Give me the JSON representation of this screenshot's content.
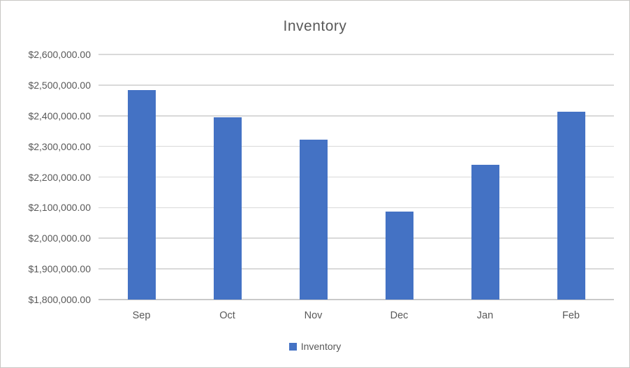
{
  "chart_data": {
    "type": "bar",
    "title": "Inventory",
    "categories": [
      "Sep",
      "Oct",
      "Nov",
      "Dec",
      "Jan",
      "Feb"
    ],
    "series": [
      {
        "name": "Inventory",
        "values": [
          2484000,
          2396000,
          2322000,
          2087000,
          2240000,
          2412000
        ]
      }
    ],
    "xlabel": "",
    "ylabel": "",
    "ylim": [
      1800000,
      2600000
    ],
    "y_tick_step": 100000,
    "y_tick_values": [
      1800000,
      1900000,
      2000000,
      2100000,
      2200000,
      2300000,
      2400000,
      2500000,
      2600000
    ],
    "y_tick_labels": [
      "$1,800,000.00",
      "$1,900,000.00",
      "$2,000,000.00",
      "$2,100,000.00",
      "$2,200,000.00",
      "$2,300,000.00",
      "$2,400,000.00",
      "$2,500,000.00",
      "$2,600,000.00"
    ],
    "grid": true,
    "legend_position": "bottom",
    "legend": [
      "Inventory"
    ],
    "colors": {
      "bar": "#4472C4",
      "gridline": "#D9D9D9",
      "axis_line": "#C9C9C9",
      "text": "#595959",
      "border": "#C8C6C4",
      "background": "#FFFFFF"
    }
  }
}
